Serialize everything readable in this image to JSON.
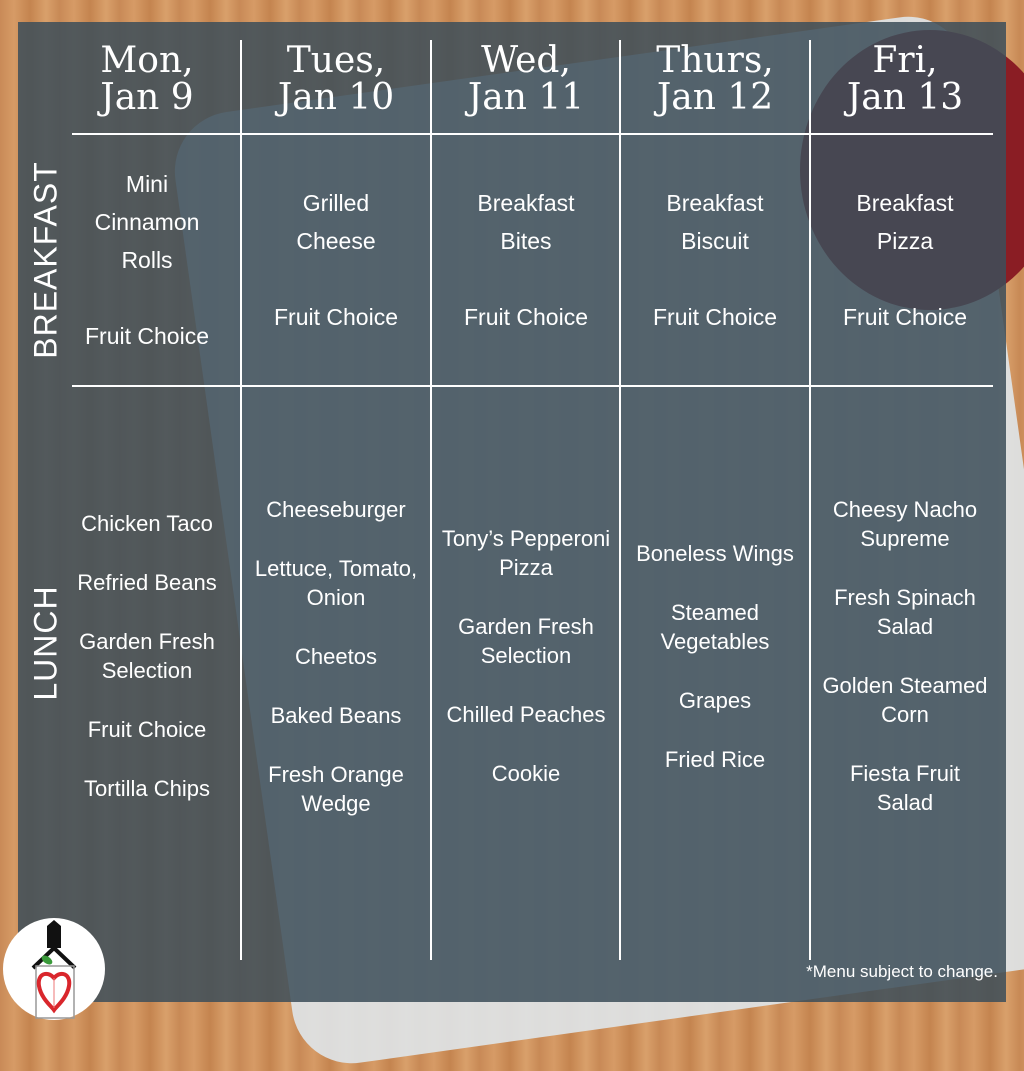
{
  "days": [
    {
      "day": "Mon,",
      "date": "Jan 9",
      "breakfast": [
        "Mini Cinnamon Rolls",
        "Fruit Choice"
      ],
      "lunch": [
        "Chicken Taco",
        "Refried Beans",
        "Garden Fresh Selection",
        "Fruit Choice",
        "Tortilla Chips"
      ]
    },
    {
      "day": "Tues,",
      "date": "Jan 10",
      "breakfast": [
        "Grilled Cheese",
        "Fruit Choice"
      ],
      "lunch": [
        "Cheeseburger",
        "Lettuce, Tomato, Onion",
        "Cheetos",
        "Baked Beans",
        "Fresh Orange Wedge"
      ]
    },
    {
      "day": "Wed,",
      "date": "Jan 11",
      "breakfast": [
        "Breakfast Bites",
        "Fruit Choice"
      ],
      "lunch": [
        "Tony’s Pepperoni Pizza",
        "Garden Fresh Selection",
        "Chilled Peaches",
        "Cookie"
      ]
    },
    {
      "day": "Thurs,",
      "date": "Jan 12",
      "breakfast": [
        "Breakfast Biscuit",
        "Fruit Choice"
      ],
      "lunch": [
        "Boneless Wings",
        "Steamed Vegetables",
        "Grapes",
        "Fried Rice"
      ]
    },
    {
      "day": "Fri,",
      "date": "Jan 13",
      "breakfast": [
        "Breakfast Pizza",
        "Fruit Choice"
      ],
      "lunch": [
        "Cheesy Nacho Supreme",
        "Fresh Spinach Salad",
        "Golden Steamed Corn",
        "Fiesta Fruit Salad"
      ]
    }
  ],
  "rows": {
    "breakfast": "BREAKFAST",
    "lunch": "LUNCH"
  },
  "note": "*Menu subject to change.",
  "colors": {
    "panel": "#3c4e5a",
    "text": "#ffffff",
    "apple": "#d9262c",
    "leaf": "#3a9a3a"
  }
}
